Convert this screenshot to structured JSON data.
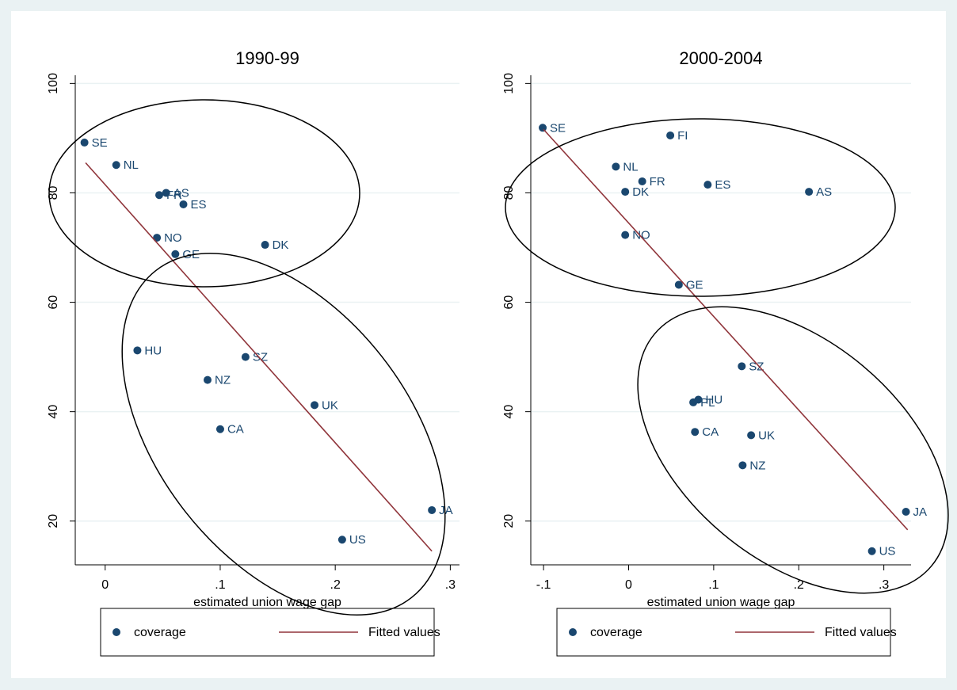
{
  "chart_data": [
    {
      "type": "scatter",
      "title": "1990-99",
      "xlabel": "estimated union wage gap",
      "xlim": [
        -0.026,
        0.308
      ],
      "ylim": [
        12,
        101.5
      ],
      "xticks": [
        0,
        {
          "value": 0.1,
          "label": ".1"
        },
        {
          "value": 0.2,
          "label": ".2"
        },
        {
          "value": 0.3,
          "label": ".3"
        }
      ],
      "yticks": [
        20,
        40,
        60,
        80,
        100
      ],
      "grid": true,
      "legend": "bottom",
      "series": [
        {
          "name": "coverage",
          "color": "#1a476f",
          "type": "scatter",
          "labels": [
            "SE",
            "NL",
            "FR",
            "AS",
            "ES",
            "NO",
            "GE",
            "DK",
            "HU",
            "SZ",
            "NZ",
            "UK",
            "CA",
            "JA",
            "US"
          ],
          "x": [
            -0.018,
            0.0096,
            0.047,
            0.053,
            0.068,
            0.045,
            0.061,
            0.139,
            0.028,
            0.122,
            0.089,
            0.182,
            0.1,
            0.284,
            0.206
          ],
          "values": [
            89.2,
            85.1,
            79.6,
            80.0,
            77.9,
            71.8,
            68.8,
            70.5,
            51.2,
            50.0,
            45.8,
            41.2,
            36.8,
            22.0,
            16.6
          ]
        },
        {
          "name": "Fitted values",
          "color": "#90353b",
          "type": "line",
          "x": [
            -0.017,
            0.284
          ],
          "values": [
            85.5,
            14.5
          ]
        }
      ]
    },
    {
      "type": "scatter",
      "title": "2000-2004",
      "xlabel": "estimated union wage gap",
      "xlim": [
        -0.115,
        0.332
      ],
      "ylim": [
        12,
        101.5
      ],
      "xticks": [
        {
          "value": -0.1,
          "label": "-.1"
        },
        0,
        {
          "value": 0.1,
          "label": ".1"
        },
        {
          "value": 0.2,
          "label": ".2"
        },
        {
          "value": 0.3,
          "label": ".3"
        }
      ],
      "yticks": [
        20,
        40,
        60,
        80,
        100
      ],
      "grid": true,
      "legend": "bottom",
      "series": [
        {
          "name": "coverage",
          "color": "#1a476f",
          "type": "scatter",
          "labels": [
            "SE",
            "FI",
            "NL",
            "FR",
            "ES",
            "DK",
            "AS",
            "NO",
            "GE",
            "SZ",
            "PL",
            "HU",
            "CA",
            "UK",
            "NZ",
            "JA",
            "US"
          ],
          "x": [
            -0.101,
            0.049,
            -0.015,
            0.016,
            0.093,
            -0.004,
            0.212,
            -0.004,
            0.059,
            0.133,
            0.076,
            0.082,
            0.078,
            0.144,
            0.134,
            0.326,
            0.286
          ],
          "values": [
            91.9,
            90.5,
            84.8,
            82.1,
            81.5,
            80.2,
            80.2,
            72.3,
            63.2,
            48.3,
            41.7,
            42.2,
            36.3,
            35.7,
            30.2,
            21.7,
            14.5
          ]
        },
        {
          "name": "Fitted values",
          "color": "#90353b",
          "type": "line",
          "x": [
            -0.1,
            0.328
          ],
          "values": [
            91.6,
            18.4
          ]
        }
      ]
    }
  ]
}
